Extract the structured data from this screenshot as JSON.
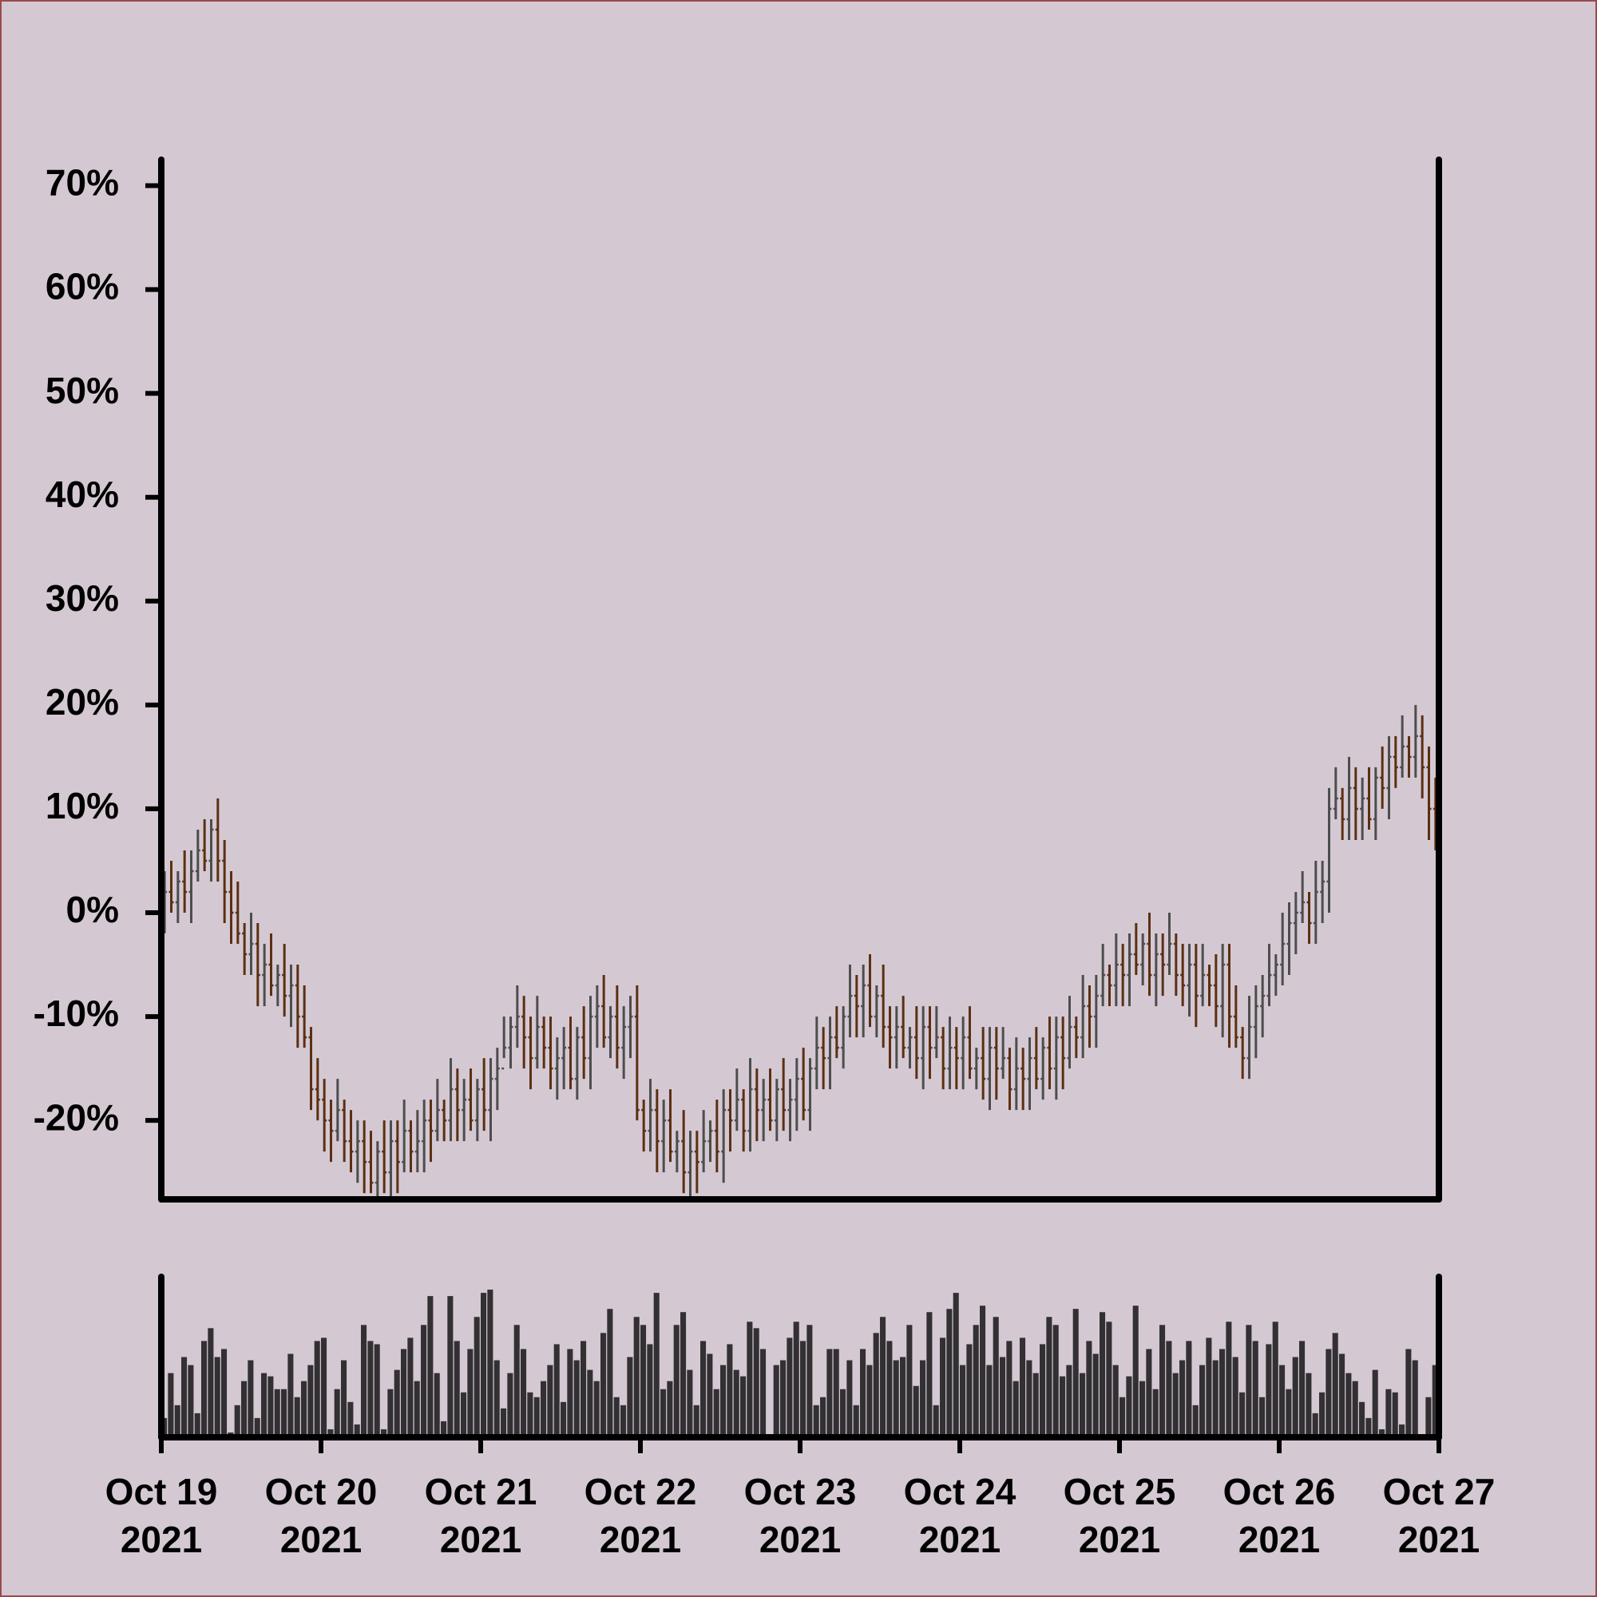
{
  "chart_data": {
    "type": "ohlc",
    "x": [
      0,
      1,
      2,
      3,
      4,
      5,
      6,
      7,
      8,
      9,
      10,
      11,
      12,
      13,
      14,
      15,
      16,
      17,
      18,
      19,
      20,
      21,
      22,
      23,
      24,
      25,
      26,
      27,
      28,
      29,
      30,
      31,
      32,
      33,
      34,
      35,
      36,
      37,
      38,
      39,
      40,
      41,
      42,
      43,
      44,
      45,
      46,
      47,
      48,
      49,
      50,
      51,
      52,
      53,
      54,
      55,
      56,
      57,
      58,
      59,
      60,
      61,
      62,
      63,
      64,
      65,
      66,
      67,
      68,
      69,
      70,
      71,
      72,
      73,
      74,
      75,
      76,
      77,
      78,
      79,
      80,
      81,
      82,
      83,
      84,
      85,
      86,
      87,
      88,
      89,
      90,
      91,
      92,
      93,
      94,
      95,
      96,
      97,
      98,
      99,
      100,
      101,
      102,
      103,
      104,
      105,
      106,
      107,
      108,
      109,
      110,
      111,
      112,
      113,
      114,
      115,
      116,
      117,
      118,
      119,
      120,
      121,
      122,
      123,
      124,
      125,
      126,
      127,
      128,
      129,
      130,
      131,
      132,
      133,
      134,
      135,
      136,
      137,
      138,
      139,
      140,
      141,
      142,
      143,
      144,
      145,
      146,
      147,
      148,
      149,
      150,
      151,
      152,
      153,
      154,
      155,
      156,
      157,
      158,
      159,
      160,
      161,
      162,
      163,
      164,
      165,
      166,
      167,
      168,
      169,
      170,
      171,
      172,
      173,
      174,
      175,
      176,
      177,
      178,
      179,
      180,
      181,
      182,
      183,
      184,
      185,
      186,
      187,
      188,
      189,
      190,
      191
    ],
    "open": [
      1,
      2,
      1,
      3,
      2,
      4,
      6,
      5,
      8,
      5,
      2,
      0,
      -2,
      -4,
      -3,
      -6,
      -5,
      -7,
      -6,
      -8,
      -7,
      -10,
      -12,
      -17,
      -18,
      -20,
      -21,
      -19,
      -22,
      -23,
      -22,
      -24,
      -26,
      -23,
      -25,
      -22,
      -24,
      -21,
      -23,
      -22,
      -20,
      -21,
      -19,
      -20,
      -17,
      -19,
      -18,
      -20,
      -17,
      -19,
      -16,
      -15,
      -13,
      -11,
      -10,
      -12,
      -14,
      -11,
      -13,
      -15,
      -14,
      -13,
      -16,
      -12,
      -14,
      -10,
      -9,
      -12,
      -10,
      -13,
      -11,
      -10,
      -19,
      -21,
      -19,
      -22,
      -20,
      -23,
      -22,
      -25,
      -23,
      -24,
      -22,
      -21,
      -23,
      -19,
      -20,
      -18,
      -21,
      -17,
      -19,
      -18,
      -20,
      -17,
      -19,
      -18,
      -16,
      -19,
      -15,
      -13,
      -14,
      -12,
      -13,
      -10,
      -8,
      -9,
      -7,
      -10,
      -8,
      -11,
      -12,
      -11,
      -13,
      -12,
      -14,
      -11,
      -13,
      -12,
      -15,
      -13,
      -14,
      -12,
      -15,
      -14,
      -16,
      -13,
      -15,
      -14,
      -17,
      -15,
      -16,
      -14,
      -16,
      -13,
      -15,
      -12,
      -14,
      -11,
      -12,
      -9,
      -10,
      -8,
      -6,
      -7,
      -5,
      -6,
      -4,
      -5,
      -3,
      -6,
      -4,
      -5,
      -3,
      -6,
      -7,
      -5,
      -8,
      -6,
      -7,
      -9,
      -5,
      -10,
      -12,
      -14,
      -11,
      -9,
      -8,
      -6,
      -5,
      -3,
      -1,
      0,
      1,
      -1,
      2,
      3,
      10,
      11,
      9,
      12,
      10,
      11,
      9,
      13,
      12,
      15,
      14,
      16,
      15,
      17,
      14,
      10
    ],
    "high": [
      4,
      5,
      4,
      6,
      6,
      8,
      9,
      9,
      11,
      7,
      4,
      3,
      -1,
      0,
      -1,
      -3,
      -2,
      -5,
      -3,
      -5,
      -5,
      -7,
      -11,
      -14,
      -16,
      -18,
      -16,
      -18,
      -19,
      -20,
      -20,
      -21,
      -22,
      -20,
      -20,
      -20,
      -18,
      -20,
      -19,
      -18,
      -18,
      -16,
      -18,
      -14,
      -15,
      -16,
      -15,
      -16,
      -14,
      -14,
      -13,
      -10,
      -10,
      -7,
      -8,
      -10,
      -8,
      -10,
      -10,
      -12,
      -11,
      -10,
      -11,
      -9,
      -8,
      -7,
      -6,
      -9,
      -7,
      -9,
      -8,
      -7,
      -18,
      -16,
      -17,
      -18,
      -17,
      -21,
      -19,
      -21,
      -21,
      -19,
      -20,
      -18,
      -17,
      -17,
      -15,
      -17,
      -14,
      -15,
      -16,
      -15,
      -16,
      -14,
      -16,
      -14,
      -13,
      -14,
      -10,
      -11,
      -10,
      -9,
      -9,
      -5,
      -6,
      -5,
      -4,
      -7,
      -5,
      -9,
      -9,
      -8,
      -11,
      -9,
      -9,
      -9,
      -9,
      -11,
      -10,
      -11,
      -10,
      -9,
      -13,
      -11,
      -11,
      -11,
      -11,
      -13,
      -12,
      -13,
      -12,
      -11,
      -12,
      -10,
      -10,
      -10,
      -8,
      -10,
      -6,
      -7,
      -6,
      -3,
      -5,
      -2,
      -3,
      -2,
      -1,
      -2,
      0,
      -2,
      -2,
      0,
      -2,
      -3,
      -3,
      -3,
      -3,
      -5,
      -4,
      -3,
      -3,
      -7,
      -11,
      -8,
      -7,
      -6,
      -3,
      -4,
      0,
      1,
      2,
      4,
      2,
      5,
      5,
      12,
      14,
      12,
      15,
      14,
      13,
      14,
      14,
      16,
      17,
      17,
      19,
      17,
      20,
      19,
      16,
      13
    ],
    "low": [
      -2,
      0,
      -1,
      0,
      -1,
      3,
      4,
      3,
      3,
      -1,
      -3,
      -3,
      -6,
      -6,
      -9,
      -9,
      -8,
      -9,
      -10,
      -11,
      -13,
      -13,
      -19,
      -20,
      -23,
      -24,
      -22,
      -24,
      -25,
      -26,
      -27,
      -27,
      -28,
      -27,
      -28,
      -27,
      -25,
      -25,
      -25,
      -25,
      -24,
      -22,
      -22,
      -22,
      -22,
      -22,
      -21,
      -22,
      -21,
      -22,
      -19,
      -14,
      -15,
      -13,
      -15,
      -17,
      -15,
      -15,
      -17,
      -18,
      -17,
      -17,
      -18,
      -16,
      -17,
      -13,
      -13,
      -14,
      -15,
      -16,
      -14,
      -20,
      -23,
      -23,
      -25,
      -25,
      -24,
      -25,
      -27,
      -28,
      -27,
      -25,
      -24,
      -25,
      -26,
      -23,
      -21,
      -23,
      -23,
      -22,
      -22,
      -21,
      -22,
      -21,
      -22,
      -21,
      -20,
      -21,
      -17,
      -17,
      -17,
      -14,
      -15,
      -12,
      -12,
      -12,
      -11,
      -12,
      -13,
      -15,
      -15,
      -14,
      -15,
      -16,
      -17,
      -16,
      -14,
      -17,
      -17,
      -17,
      -17,
      -16,
      -17,
      -18,
      -19,
      -18,
      -16,
      -19,
      -19,
      -19,
      -19,
      -17,
      -18,
      -17,
      -18,
      -17,
      -15,
      -14,
      -14,
      -13,
      -13,
      -9,
      -9,
      -9,
      -9,
      -9,
      -6,
      -7,
      -8,
      -9,
      -8,
      -6,
      -8,
      -9,
      -10,
      -11,
      -9,
      -9,
      -11,
      -12,
      -13,
      -13,
      -16,
      -16,
      -14,
      -12,
      -9,
      -8,
      -7,
      -6,
      -4,
      -1,
      -3,
      -3,
      -1,
      0,
      9,
      7,
      7,
      7,
      7,
      8,
      7,
      10,
      9,
      12,
      13,
      13,
      13,
      11,
      7,
      6
    ],
    "close": [
      2,
      1,
      3,
      2,
      4,
      6,
      5,
      8,
      5,
      2,
      0,
      -2,
      -4,
      -3,
      -6,
      -5,
      -7,
      -6,
      -8,
      -7,
      -10,
      -12,
      -17,
      -18,
      -20,
      -21,
      -19,
      -22,
      -23,
      -22,
      -24,
      -26,
      -23,
      -25,
      -22,
      -24,
      -21,
      -23,
      -22,
      -20,
      -21,
      -19,
      -20,
      -17,
      -19,
      -18,
      -20,
      -17,
      -19,
      -16,
      -15,
      -13,
      -11,
      -10,
      -12,
      -14,
      -11,
      -13,
      -15,
      -14,
      -13,
      -16,
      -12,
      -14,
      -10,
      -9,
      -12,
      -10,
      -13,
      -11,
      -10,
      -19,
      -21,
      -19,
      -22,
      -20,
      -23,
      -22,
      -25,
      -23,
      -24,
      -22,
      -21,
      -23,
      -19,
      -20,
      -18,
      -21,
      -17,
      -19,
      -18,
      -20,
      -17,
      -19,
      -18,
      -16,
      -19,
      -15,
      -13,
      -14,
      -12,
      -13,
      -10,
      -8,
      -9,
      -7,
      -10,
      -8,
      -11,
      -12,
      -11,
      -13,
      -12,
      -14,
      -11,
      -13,
      -12,
      -15,
      -13,
      -14,
      -12,
      -15,
      -14,
      -16,
      -13,
      -15,
      -14,
      -17,
      -15,
      -16,
      -14,
      -16,
      -13,
      -15,
      -12,
      -14,
      -11,
      -12,
      -9,
      -10,
      -8,
      -6,
      -7,
      -5,
      -6,
      -4,
      -5,
      -3,
      -6,
      -4,
      -5,
      -3,
      -6,
      -7,
      -5,
      -8,
      -6,
      -7,
      -9,
      -5,
      -10,
      -12,
      -14,
      -11,
      -9,
      -8,
      -6,
      -5,
      -3,
      -1,
      0,
      1,
      -1,
      2,
      3,
      10,
      11,
      9,
      12,
      10,
      11,
      9,
      13,
      12,
      15,
      14,
      16,
      15,
      17,
      14,
      10,
      8
    ],
    "up_color": "#4d4d4d",
    "down_color": "#5c2f12",
    "xlim": [
      0,
      192
    ],
    "xticks": [
      {
        "value": 0,
        "label": "Oct 19\n2021"
      },
      {
        "value": 24,
        "label": "Oct 20\n2021"
      },
      {
        "value": 48,
        "label": "Oct 21\n2021"
      },
      {
        "value": 72,
        "label": "Oct 22\n2021"
      },
      {
        "value": 96,
        "label": "Oct 23\n2021"
      },
      {
        "value": 120,
        "label": "Oct 24\n2021"
      },
      {
        "value": 144,
        "label": "Oct 25\n2021"
      },
      {
        "value": 168,
        "label": "Oct 26\n2021"
      },
      {
        "value": 192,
        "label": "Oct 27\n2021"
      }
    ],
    "ylim": [
      -27.6,
      72.5
    ],
    "yticks": [
      {
        "value": -20,
        "label": "-20%"
      },
      {
        "value": -10,
        "label": "-10%"
      },
      {
        "value": 0,
        "label": "0%"
      },
      {
        "value": 10,
        "label": "10%"
      },
      {
        "value": 20,
        "label": "20%"
      },
      {
        "value": 30,
        "label": "30%"
      },
      {
        "value": 40,
        "label": "40%"
      },
      {
        "value": 50,
        "label": "50%"
      },
      {
        "value": 60,
        "label": "60%"
      },
      {
        "value": 70,
        "label": "70%"
      }
    ],
    "volume": {
      "color": "#333033",
      "ylim": [
        0,
        100
      ],
      "values": [
        12,
        40,
        20,
        50,
        45,
        15,
        60,
        68,
        50,
        55,
        3,
        20,
        35,
        48,
        12,
        40,
        38,
        30,
        30,
        52,
        25,
        35,
        45,
        60,
        62,
        5,
        30,
        48,
        22,
        8,
        70,
        60,
        58,
        5,
        30,
        42,
        55,
        62,
        35,
        70,
        88,
        40,
        10,
        88,
        60,
        28,
        55,
        75,
        90,
        92,
        48,
        18,
        40,
        70,
        55,
        28,
        25,
        35,
        45,
        58,
        22,
        55,
        48,
        60,
        42,
        35,
        65,
        80,
        25,
        20,
        50,
        75,
        70,
        58,
        90,
        30,
        35,
        70,
        78,
        42,
        20,
        60,
        52,
        30,
        45,
        58,
        42,
        38,
        72,
        68,
        55,
        2,
        45,
        48,
        62,
        72,
        60,
        70,
        20,
        25,
        55,
        55,
        30,
        48,
        20,
        55,
        45,
        65,
        75,
        60,
        48,
        50,
        70,
        32,
        48,
        78,
        20,
        62,
        80,
        90,
        45,
        58,
        70,
        82,
        45,
        75,
        50,
        60,
        35,
        62,
        48,
        40,
        58,
        75,
        70,
        38,
        45,
        80,
        40,
        60,
        52,
        78,
        72,
        45,
        25,
        38,
        82,
        35,
        55,
        30,
        70,
        60,
        40,
        48,
        60,
        20,
        45,
        62,
        48,
        55,
        72,
        50,
        28,
        70,
        60,
        25,
        58,
        72,
        45,
        30,
        50,
        60,
        40,
        15,
        28,
        55,
        65,
        52,
        40,
        35,
        22,
        12,
        42,
        5,
        30,
        28,
        8,
        55,
        48,
        2,
        25,
        45
      ]
    }
  }
}
